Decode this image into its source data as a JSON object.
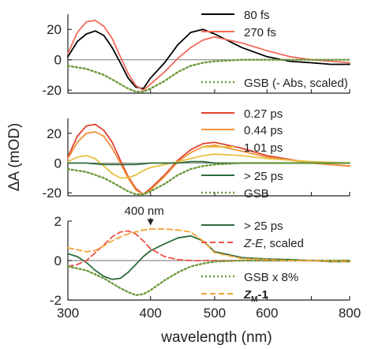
{
  "chart_data": [
    {
      "type": "line",
      "ylim": [
        -22,
        30
      ],
      "yticks": [
        20,
        0,
        -20
      ],
      "xscale": "log",
      "xlim": [
        300,
        800
      ],
      "grid": false,
      "legend_position": "right",
      "series": [
        {
          "name": "80 fs",
          "color": "#000000",
          "dash": "solid",
          "x": [
            300,
            310,
            320,
            330,
            340,
            350,
            360,
            370,
            380,
            390,
            400,
            420,
            440,
            460,
            480,
            500,
            550,
            600,
            650,
            700,
            750,
            800
          ],
          "y": [
            2,
            12,
            17,
            19,
            16,
            8,
            -2,
            -12,
            -18,
            -19,
            -12,
            -2,
            10,
            18,
            20,
            17,
            8,
            2,
            -1,
            -2,
            -3,
            -3
          ]
        },
        {
          "name": "270 fs",
          "color": "#f26a5b",
          "dash": "solid",
          "x": [
            300,
            310,
            320,
            330,
            340,
            350,
            360,
            370,
            380,
            390,
            400,
            420,
            440,
            460,
            480,
            500,
            550,
            600,
            650,
            700,
            750,
            800
          ],
          "y": [
            4,
            18,
            25,
            26,
            22,
            14,
            2,
            -9,
            -17,
            -20,
            -16,
            -8,
            1,
            8,
            13,
            15,
            11,
            6,
            2,
            0,
            -1,
            -2
          ]
        },
        {
          "name": "GSB (- Abs, scaled)",
          "color": "#6e9a3c",
          "dash": "dot",
          "x": [
            300,
            310,
            320,
            330,
            340,
            350,
            360,
            370,
            380,
            390,
            400,
            420,
            440,
            460,
            480,
            500,
            550,
            600,
            700,
            800
          ],
          "y": [
            -4,
            -5,
            -6,
            -8,
            -10,
            -13,
            -16,
            -19,
            -21,
            -21,
            -19,
            -14,
            -8,
            -4,
            -2,
            -1,
            0,
            0,
            0,
            0
          ]
        }
      ],
      "legend": {
        "entries": [
          "80 fs",
          "270 fs",
          "GSB (- Abs, scaled)"
        ]
      }
    },
    {
      "type": "line",
      "ylim": [
        -22,
        30
      ],
      "yticks": [
        20,
        0,
        -20
      ],
      "ylabel": "ΔA (mOD)",
      "xscale": "log",
      "xlim": [
        300,
        800
      ],
      "grid": false,
      "legend_position": "right",
      "series": [
        {
          "name": "0.27 ps",
          "color": "#e0432f",
          "dash": "solid",
          "x": [
            300,
            310,
            320,
            330,
            340,
            350,
            360,
            370,
            380,
            390,
            400,
            420,
            440,
            460,
            480,
            500,
            550,
            600,
            700,
            800
          ],
          "y": [
            4,
            18,
            25,
            26,
            22,
            14,
            2,
            -9,
            -17,
            -21,
            -17,
            -8,
            2,
            9,
            13,
            14,
            10,
            5,
            0,
            -2
          ]
        },
        {
          "name": "0.44 ps",
          "color": "#f0913a",
          "dash": "solid",
          "x": [
            300,
            310,
            320,
            330,
            340,
            350,
            360,
            370,
            380,
            390,
            400,
            420,
            440,
            460,
            480,
            500,
            550,
            600,
            700,
            800
          ],
          "y": [
            3,
            14,
            20,
            21,
            18,
            10,
            0,
            -10,
            -18,
            -21,
            -18,
            -9,
            1,
            7,
            11,
            12,
            8,
            4,
            0,
            -2
          ]
        },
        {
          "name": "1.01 ps",
          "color": "#e8c041",
          "dash": "solid",
          "x": [
            300,
            310,
            320,
            330,
            340,
            350,
            360,
            370,
            380,
            390,
            400,
            420,
            440,
            460,
            480,
            500,
            550,
            600,
            700,
            800
          ],
          "y": [
            1,
            4,
            5,
            3,
            -2,
            -7,
            -10,
            -10,
            -8,
            -5,
            -3,
            -1,
            1,
            3,
            5,
            6,
            5,
            3,
            1,
            0
          ]
        },
        {
          "name": "> 25 ps",
          "color": "#2f6b3a",
          "dash": "solid",
          "x": [
            300,
            320,
            340,
            360,
            380,
            400,
            420,
            440,
            460,
            480,
            500,
            600,
            700,
            800
          ],
          "y": [
            0,
            0,
            -1,
            -1,
            -1,
            0,
            0,
            0,
            1,
            1,
            0,
            0,
            0,
            0
          ]
        },
        {
          "name": "GSB",
          "color": "#6e9a3c",
          "dash": "dot",
          "x": [
            300,
            310,
            320,
            330,
            340,
            350,
            360,
            370,
            380,
            390,
            400,
            420,
            440,
            460,
            480,
            500,
            550,
            600,
            700,
            800
          ],
          "y": [
            -4,
            -5,
            -6,
            -8,
            -10,
            -13,
            -16,
            -19,
            -21,
            -21,
            -19,
            -14,
            -8,
            -4,
            -2,
            -1,
            0,
            0,
            0,
            0
          ]
        }
      ],
      "legend": {
        "entries": [
          "0.27 ps",
          "0.44 ps",
          "1.01 ps",
          "> 25 ps",
          "GSB"
        ]
      }
    },
    {
      "type": "line",
      "ylim": [
        -2,
        2
      ],
      "yticks": [
        2,
        0,
        -2
      ],
      "xscale": "log",
      "xlim": [
        300,
        800
      ],
      "xticks": [
        300,
        400,
        500,
        600,
        800
      ],
      "xlabel": "wavelength (nm)",
      "grid": false,
      "legend_position": "right",
      "annotations": [
        {
          "text": "400 nm",
          "x": 400,
          "arrow_to_y": 1.7
        }
      ],
      "series": [
        {
          "name": "> 25 ps",
          "color": "#2f6b3a",
          "dash": "solid",
          "x": [
            300,
            310,
            320,
            330,
            340,
            350,
            360,
            370,
            380,
            390,
            400,
            420,
            440,
            460,
            480,
            500,
            550,
            600,
            650,
            700,
            750,
            800
          ],
          "y": [
            0.35,
            0.2,
            -0.1,
            -0.5,
            -0.8,
            -0.95,
            -0.9,
            -0.6,
            -0.2,
            0.2,
            0.5,
            0.85,
            1.15,
            1.25,
            1.0,
            0.45,
            0.15,
            0.08,
            0.05,
            0.0,
            -0.05,
            -0.05
          ]
        },
        {
          "name": "Z-E, scaled",
          "color": "#f0524a",
          "dash": "dash",
          "x": [
            300,
            310,
            320,
            330,
            340,
            350,
            360,
            370,
            380,
            390,
            400,
            420,
            440,
            460,
            480,
            500,
            550,
            600,
            700,
            800
          ],
          "y": [
            -0.3,
            -0.2,
            0.0,
            0.4,
            0.8,
            1.2,
            1.45,
            1.5,
            1.35,
            1.0,
            0.6,
            0.2,
            0.05,
            0.0,
            0.0,
            0.0,
            0.0,
            0.0,
            0.0,
            0.0
          ]
        },
        {
          "name": "GSB x 8%",
          "color": "#6e9a3c",
          "dash": "dot",
          "x": [
            300,
            310,
            320,
            330,
            340,
            350,
            360,
            370,
            380,
            390,
            400,
            420,
            440,
            460,
            480,
            500,
            550,
            600,
            700,
            800
          ],
          "y": [
            -0.3,
            -0.4,
            -0.5,
            -0.7,
            -0.9,
            -1.15,
            -1.4,
            -1.6,
            -1.75,
            -1.7,
            -1.5,
            -1.0,
            -0.6,
            -0.3,
            -0.15,
            -0.05,
            0.0,
            0.0,
            0.0,
            0.0
          ]
        },
        {
          "name": "Z_M-1",
          "color": "#f2a535",
          "dash": "dash",
          "x": [
            300,
            310,
            320,
            330,
            340,
            350,
            360,
            370,
            380,
            390,
            400,
            420,
            440,
            460,
            480,
            500,
            550,
            600,
            650,
            700,
            800
          ],
          "y": [
            0.65,
            0.55,
            0.45,
            0.5,
            0.75,
            1.0,
            1.2,
            1.35,
            1.45,
            1.55,
            1.6,
            1.6,
            1.55,
            1.45,
            1.0,
            0.4,
            0.1,
            0.05,
            0.0,
            0.0,
            -0.05
          ]
        }
      ],
      "legend": {
        "entries": [
          "> 25 ps",
          "Z-E, scaled",
          "GSB x 8%",
          "Z_M-1"
        ]
      }
    }
  ]
}
